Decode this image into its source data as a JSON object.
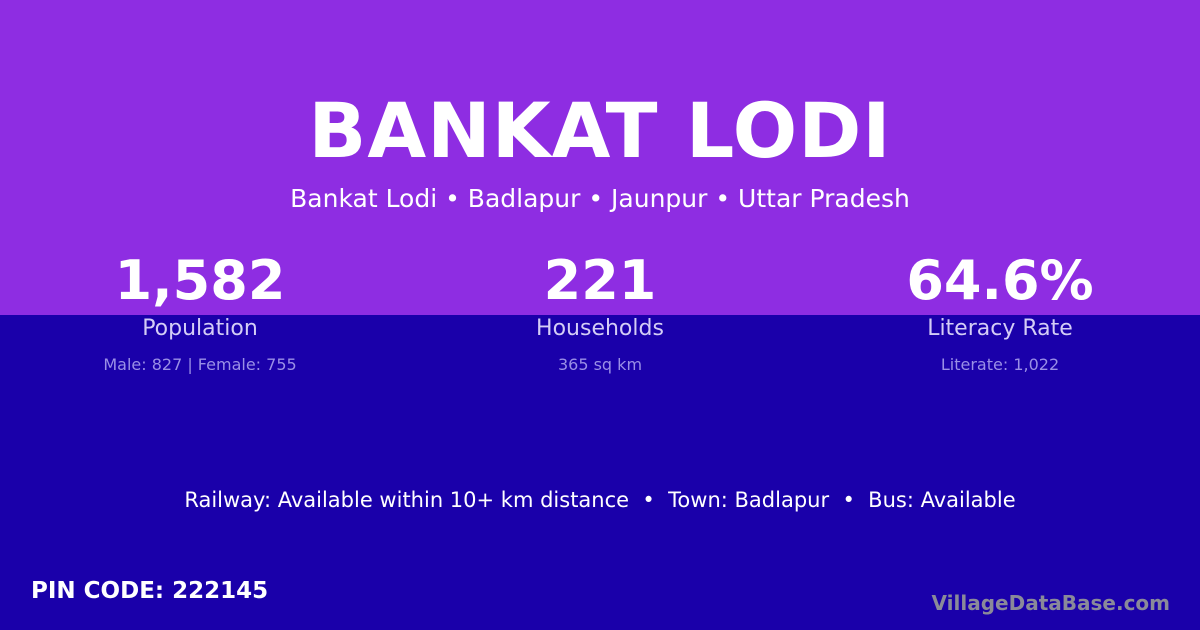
{
  "colors": {
    "top_background": "#8e2de2",
    "bottom_background": "#1a00aa"
  },
  "title": "BANKAT LODI",
  "subtitle": "Bankat Lodi • Badlapur • Jaunpur • Uttar Pradesh",
  "stats": [
    {
      "value": "1,582",
      "label": "Population",
      "sub": "Male: 827 | Female: 755"
    },
    {
      "value": "221",
      "label": "Households",
      "sub": "365 sq km"
    },
    {
      "value": "64.6%",
      "label": "Literacy Rate",
      "sub": "Literate: 1,022"
    }
  ],
  "facts": "Railway: Available within 10+ km distance  •  Town: Badlapur  •  Bus: Available",
  "pin_code": "PIN CODE: 222145",
  "brand": "VillageDataBase.com"
}
